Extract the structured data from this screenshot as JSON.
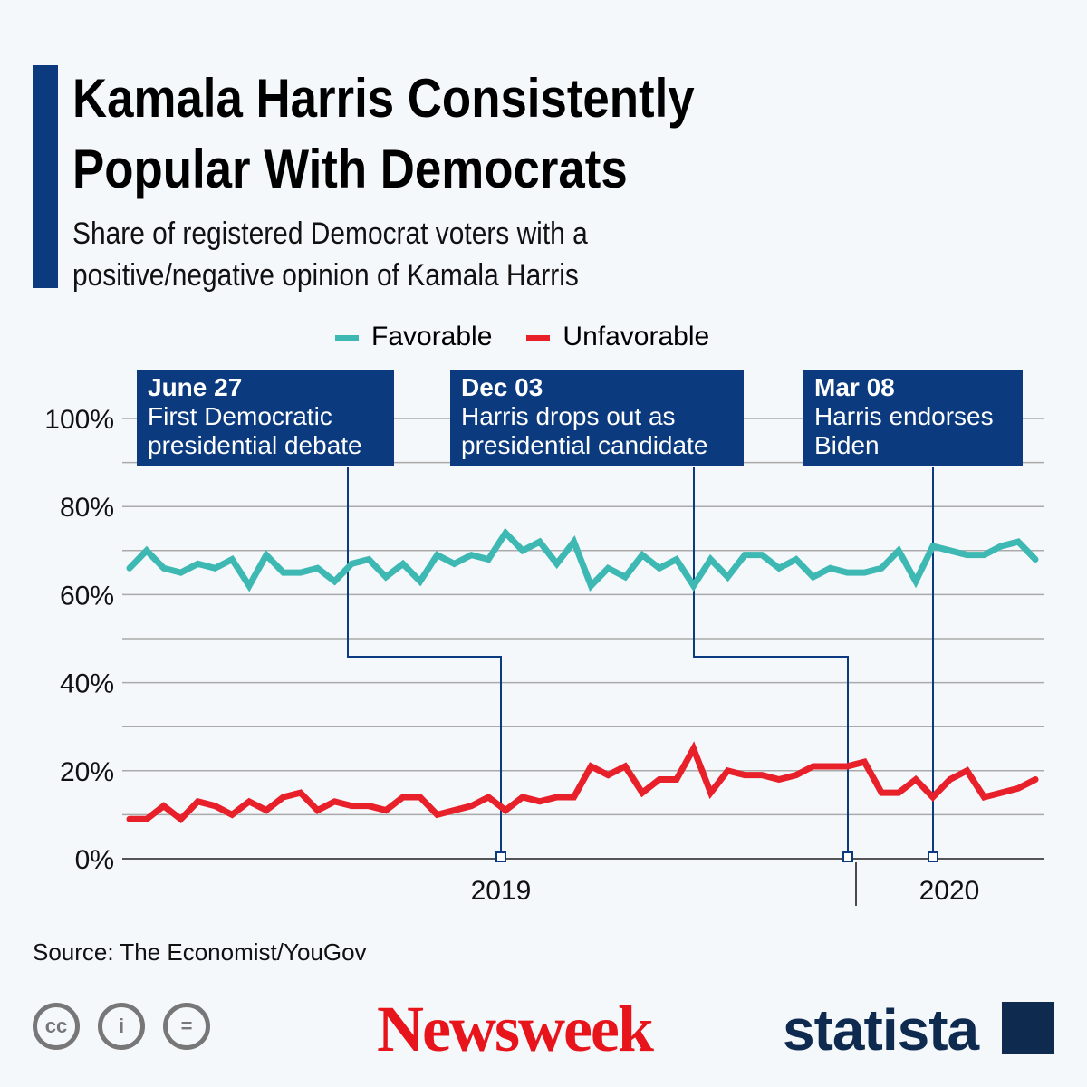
{
  "title": "Kamala Harris Consistently Popular With Democrats",
  "subtitle": "Share of registered Democrat voters with a positive/negative opinion of Kamala Harris",
  "source": "Source: The Economist/YouGov",
  "logos": {
    "newsweek": "Newsweek",
    "statista": "statista",
    "license_icons": [
      "cc-icon",
      "attribution-icon",
      "no-derivatives-icon"
    ]
  },
  "colors": {
    "favorable": "#3db8b3",
    "unfavorable": "#e8202a",
    "accent": "#0b3a7e"
  },
  "chart_data": {
    "type": "line",
    "title": "Kamala Harris Consistently Popular With Democrats",
    "ylim": [
      0,
      100
    ],
    "yticks": [
      "0%",
      "20%",
      "40%",
      "60%",
      "80%",
      "100%"
    ],
    "xtick_labels": [
      "2019",
      "2020"
    ],
    "grid": true,
    "legend": "top",
    "series": [
      {
        "name": "Favorable",
        "values": [
          66,
          70,
          66,
          65,
          67,
          66,
          68,
          62,
          69,
          65,
          65,
          66,
          63,
          67,
          68,
          64,
          67,
          63,
          69,
          67,
          69,
          68,
          74,
          70,
          72,
          67,
          72,
          62,
          66,
          64,
          69,
          66,
          68,
          62,
          68,
          64,
          69,
          69,
          66,
          68,
          64,
          66,
          65,
          65,
          66,
          70,
          63,
          71,
          70,
          69,
          69,
          71,
          72,
          68
        ]
      },
      {
        "name": "Unfavorable",
        "values": [
          9,
          9,
          12,
          9,
          13,
          12,
          10,
          13,
          11,
          14,
          15,
          11,
          13,
          12,
          12,
          11,
          14,
          14,
          10,
          11,
          12,
          14,
          11,
          14,
          13,
          14,
          14,
          21,
          19,
          21,
          15,
          18,
          18,
          25,
          15,
          20,
          19,
          19,
          18,
          19,
          21,
          21,
          21,
          22,
          15,
          15,
          18,
          14,
          18,
          20,
          14,
          15,
          16,
          18
        ]
      }
    ],
    "annotations": [
      {
        "date": "June 27",
        "text": "First Democratic presidential debate"
      },
      {
        "date": "Dec 03",
        "text": "Harris drops out as presidential candidate"
      },
      {
        "date": "Mar 08",
        "text": "Harris endorses Biden"
      }
    ]
  }
}
